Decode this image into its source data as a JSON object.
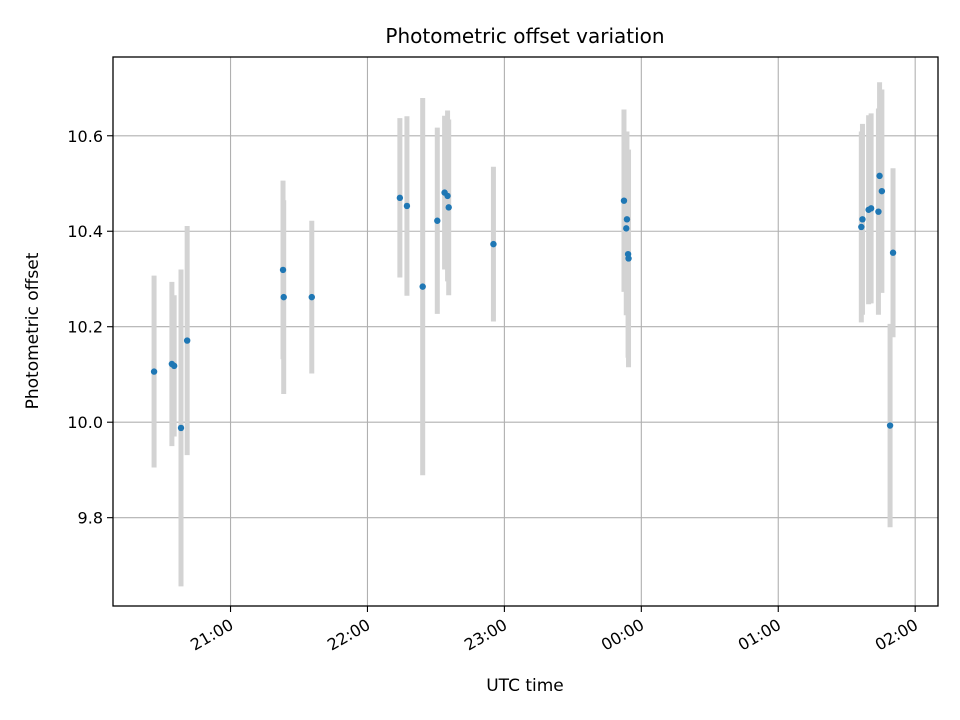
{
  "chart_data": {
    "type": "scatter",
    "title": "Photometric offset variation",
    "xlabel": "UTC time",
    "ylabel": "Photometric offset",
    "grid": true,
    "x_tick_labels": [
      "21:00",
      "22:00",
      "23:00",
      "00:00",
      "01:00",
      "02:00"
    ],
    "x_tick_minutes": [
      1260,
      1320,
      1380,
      1440,
      1500,
      1560
    ],
    "xlim_minutes": [
      1208.5,
      1570
    ],
    "y_ticks": [
      9.8,
      10.0,
      10.2,
      10.4,
      10.6
    ],
    "y_tick_labels": [
      "9.8",
      "10.0",
      "10.2",
      "10.4",
      "10.6"
    ],
    "ylim": [
      9.615,
      10.765
    ],
    "point_color": "#1f77b4",
    "errorbar_color": "#d3d3d3",
    "series": [
      {
        "time": [
          "20:26",
          "20:34",
          "20:35",
          "20:38",
          "20:41",
          "21:23",
          "21:23",
          "21:35",
          "22:14",
          "22:17",
          "22:24",
          "22:31",
          "22:34",
          "22:35",
          "22:35",
          "22:55",
          "23:52",
          "23:53",
          "23:53",
          "23:54",
          "23:54",
          "01:36",
          "01:37",
          "01:40",
          "01:41",
          "01:44",
          "01:45",
          "01:46",
          "01:49",
          "01:50"
        ],
        "x_minutes": [
          1226.5,
          1234.3,
          1235.3,
          1238.3,
          1241.0,
          1283.0,
          1283.3,
          1295.6,
          1334.2,
          1337.3,
          1344.2,
          1350.6,
          1353.8,
          1355.1,
          1355.6,
          1375.2,
          1432.4,
          1433.4,
          1433.7,
          1434.2,
          1434.4,
          1536.4,
          1536.9,
          1539.6,
          1540.7,
          1543.9,
          1544.4,
          1545.4,
          1549.0,
          1550.3
        ],
        "y": [
          10.106,
          10.122,
          10.118,
          9.988,
          10.171,
          10.319,
          10.262,
          10.262,
          10.47,
          10.453,
          10.284,
          10.422,
          10.481,
          10.474,
          10.45,
          10.373,
          10.464,
          10.406,
          10.425,
          10.352,
          10.343,
          10.409,
          10.425,
          10.445,
          10.448,
          10.441,
          10.516,
          10.484,
          9.993,
          10.355
        ],
        "y_err": [
          0.201,
          0.172,
          0.148,
          0.332,
          0.24,
          0.187,
          0.203,
          0.16,
          0.167,
          0.188,
          0.395,
          0.195,
          0.161,
          0.179,
          0.184,
          0.162,
          0.191,
          0.182,
          0.184,
          0.217,
          0.228,
          0.2,
          0.2,
          0.198,
          0.199,
          0.216,
          0.196,
          0.213,
          0.213,
          0.177
        ]
      }
    ]
  }
}
